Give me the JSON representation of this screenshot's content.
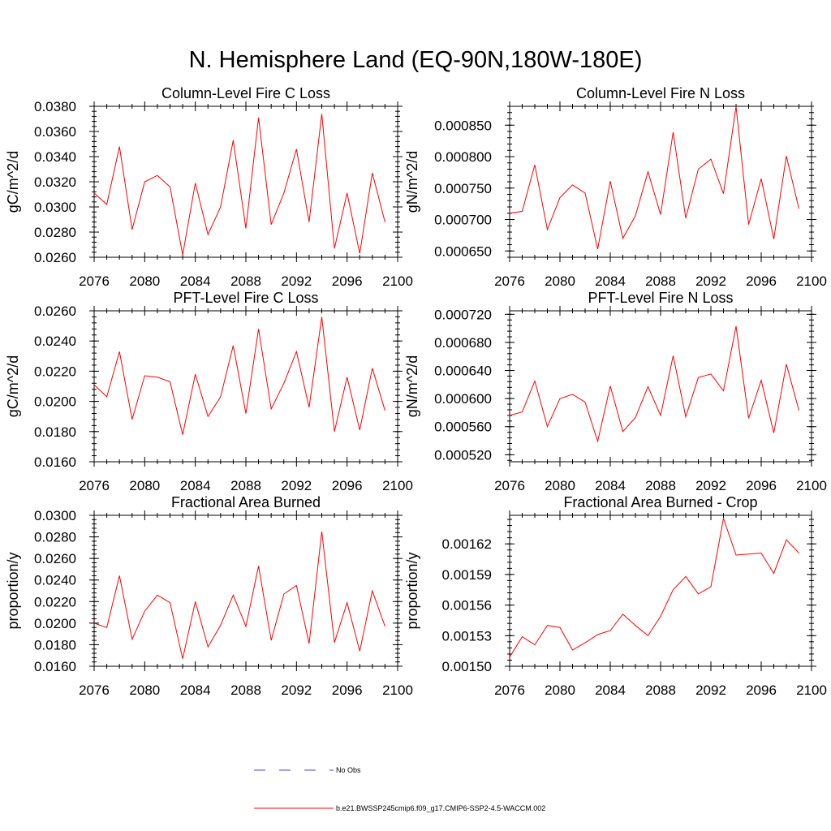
{
  "figure_title": "N. Hemisphere Land (EQ-90N,180W-180E)",
  "legend": [
    {
      "label": "No Obs",
      "color": "#4a4ad0",
      "style": "dashed"
    },
    {
      "label": "b.e21.BWSSP245cmip6.f09_g17.CMIP6-SSP2-4.5-WACCM.002",
      "color": "#ff0000",
      "style": "solid"
    }
  ],
  "chart_data": [
    {
      "type": "line",
      "title": "Column-Level Fire C Loss",
      "xlabel": "",
      "ylabel": "gC/m^2/d",
      "xlim": [
        2076,
        2100
      ],
      "ylim": [
        0.026,
        0.038
      ],
      "x_ticks": [
        2076,
        2080,
        2084,
        2088,
        2092,
        2096,
        2100
      ],
      "y_ticks": [
        "0.0260",
        "0.0280",
        "0.0300",
        "0.0320",
        "0.0340",
        "0.0360",
        "0.0380"
      ],
      "x": [
        2076,
        2077,
        2078,
        2079,
        2080,
        2081,
        2082,
        2083,
        2084,
        2085,
        2086,
        2087,
        2088,
        2089,
        2090,
        2091,
        2092,
        2093,
        2094,
        2095,
        2096,
        2097,
        2098,
        2099
      ],
      "series": [
        {
          "color": "#ff0000",
          "values": [
            0.0311,
            0.0302,
            0.0348,
            0.0282,
            0.032,
            0.0325,
            0.0316,
            0.0262,
            0.0319,
            0.0278,
            0.03,
            0.0353,
            0.0283,
            0.0371,
            0.0286,
            0.0311,
            0.0346,
            0.0288,
            0.0374,
            0.0267,
            0.0311,
            0.0263,
            0.0327,
            0.0288
          ]
        }
      ],
      "grid": false
    },
    {
      "type": "line",
      "title": "Column-Level Fire N Loss",
      "xlabel": "",
      "ylabel": "gN/m^2/d",
      "xlim": [
        2076,
        2100
      ],
      "ylim": [
        0.00064,
        0.00088
      ],
      "x_ticks": [
        2076,
        2080,
        2084,
        2088,
        2092,
        2096,
        2100
      ],
      "y_ticks": [
        "0.000650",
        "0.000700",
        "0.000750",
        "0.000800",
        "0.000850"
      ],
      "x": [
        2076,
        2077,
        2078,
        2079,
        2080,
        2081,
        2082,
        2083,
        2084,
        2085,
        2086,
        2087,
        2088,
        2089,
        2090,
        2091,
        2092,
        2093,
        2094,
        2095,
        2096,
        2097,
        2098,
        2099
      ],
      "series": [
        {
          "color": "#ff0000",
          "values": [
            0.00071,
            0.000713,
            0.000787,
            0.000684,
            0.000735,
            0.000755,
            0.000742,
            0.000653,
            0.000761,
            0.00067,
            0.000706,
            0.000776,
            0.000708,
            0.000839,
            0.000702,
            0.00078,
            0.000796,
            0.000741,
            0.00088,
            0.000692,
            0.000765,
            0.000669,
            0.000801,
            0.000717
          ]
        }
      ],
      "grid": false
    },
    {
      "type": "line",
      "title": "PFT-Level Fire C Loss",
      "xlabel": "",
      "ylabel": "gC/m^2/d",
      "xlim": [
        2076,
        2100
      ],
      "ylim": [
        0.016,
        0.026
      ],
      "x_ticks": [
        2076,
        2080,
        2084,
        2088,
        2092,
        2096,
        2100
      ],
      "y_ticks": [
        "0.0160",
        "0.0180",
        "0.0200",
        "0.0220",
        "0.0240",
        "0.0260"
      ],
      "x": [
        2076,
        2077,
        2078,
        2079,
        2080,
        2081,
        2082,
        2083,
        2084,
        2085,
        2086,
        2087,
        2088,
        2089,
        2090,
        2091,
        2092,
        2093,
        2094,
        2095,
        2096,
        2097,
        2098,
        2099
      ],
      "series": [
        {
          "color": "#ff0000",
          "values": [
            0.0211,
            0.0203,
            0.0233,
            0.0188,
            0.0217,
            0.0216,
            0.0213,
            0.0178,
            0.0218,
            0.019,
            0.0203,
            0.0237,
            0.0192,
            0.0248,
            0.0195,
            0.0212,
            0.0233,
            0.0196,
            0.0256,
            0.018,
            0.0216,
            0.0181,
            0.0222,
            0.0194
          ]
        }
      ],
      "grid": false
    },
    {
      "type": "line",
      "title": "PFT-Level Fire N Loss",
      "xlabel": "",
      "ylabel": "gN/m^2/d",
      "xlim": [
        2076,
        2100
      ],
      "ylim": [
        0.00051,
        0.000725
      ],
      "x_ticks": [
        2076,
        2080,
        2084,
        2088,
        2092,
        2096,
        2100
      ],
      "y_ticks": [
        "0.000520",
        "0.000560",
        "0.000600",
        "0.000640",
        "0.000680",
        "0.000720"
      ],
      "x": [
        2076,
        2077,
        2078,
        2079,
        2080,
        2081,
        2082,
        2083,
        2084,
        2085,
        2086,
        2087,
        2088,
        2089,
        2090,
        2091,
        2092,
        2093,
        2094,
        2095,
        2096,
        2097,
        2098,
        2099
      ],
      "series": [
        {
          "color": "#ff0000",
          "values": [
            0.000576,
            0.000581,
            0.000625,
            0.00056,
            0.0006,
            0.000606,
            0.000595,
            0.000539,
            0.000618,
            0.000553,
            0.000573,
            0.000617,
            0.000576,
            0.000661,
            0.000574,
            0.00063,
            0.000635,
            0.000611,
            0.000703,
            0.000572,
            0.000626,
            0.000551,
            0.000649,
            0.000583
          ]
        }
      ],
      "grid": false
    },
    {
      "type": "line",
      "title": "Fractional Area Burned",
      "xlabel": "",
      "ylabel": "proportion/y",
      "xlim": [
        2076,
        2100
      ],
      "ylim": [
        0.016,
        0.03
      ],
      "x_ticks": [
        2076,
        2080,
        2084,
        2088,
        2092,
        2096,
        2100
      ],
      "y_ticks": [
        "0.0160",
        "0.0180",
        "0.0200",
        "0.0220",
        "0.0240",
        "0.0260",
        "0.0280",
        "0.0300"
      ],
      "x": [
        2076,
        2077,
        2078,
        2079,
        2080,
        2081,
        2082,
        2083,
        2084,
        2085,
        2086,
        2087,
        2088,
        2089,
        2090,
        2091,
        2092,
        2093,
        2094,
        2095,
        2096,
        2097,
        2098,
        2099
      ],
      "series": [
        {
          "color": "#ff0000",
          "values": [
            0.02,
            0.0196,
            0.0244,
            0.0185,
            0.0211,
            0.0226,
            0.0219,
            0.0167,
            0.022,
            0.0178,
            0.0198,
            0.0226,
            0.0197,
            0.0253,
            0.0184,
            0.0227,
            0.0235,
            0.0181,
            0.0285,
            0.0182,
            0.0219,
            0.0174,
            0.023,
            0.0197
          ]
        }
      ],
      "grid": false
    },
    {
      "type": "line",
      "title": "Fractional Area Burned - Crop",
      "xlabel": "",
      "ylabel": "proportion/y",
      "xlim": [
        2076,
        2100
      ],
      "ylim": [
        0.0015,
        0.001648
      ],
      "x_ticks": [
        2076,
        2080,
        2084,
        2088,
        2092,
        2096,
        2100
      ],
      "y_ticks": [
        "0.00150",
        "0.00153",
        "0.00156",
        "0.00159",
        "0.00162"
      ],
      "x": [
        2076,
        2077,
        2078,
        2079,
        2080,
        2081,
        2082,
        2083,
        2084,
        2085,
        2086,
        2087,
        2088,
        2089,
        2090,
        2091,
        2092,
        2093,
        2094,
        2095,
        2096,
        2097,
        2098,
        2099
      ],
      "series": [
        {
          "color": "#ff0000",
          "values": [
            0.001509,
            0.001529,
            0.001521,
            0.00154,
            0.001538,
            0.001516,
            0.001523,
            0.001531,
            0.001535,
            0.001551,
            0.00154,
            0.00153,
            0.001549,
            0.001575,
            0.001588,
            0.001571,
            0.001578,
            0.001645,
            0.001609,
            0.00161,
            0.001611,
            0.001591,
            0.001624,
            0.001611
          ]
        }
      ],
      "grid": false
    }
  ]
}
